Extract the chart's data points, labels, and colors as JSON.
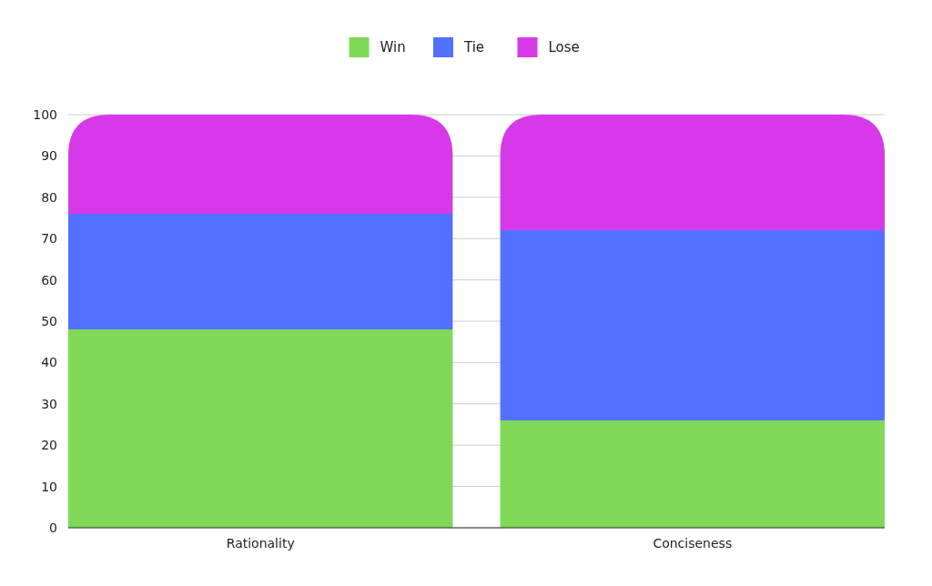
{
  "chart_data": {
    "type": "bar",
    "stacked": true,
    "categories": [
      "Rationality",
      "Conciseness"
    ],
    "series": [
      {
        "name": "Win",
        "color": "#7ed957",
        "values": [
          48,
          26
        ]
      },
      {
        "name": "Tie",
        "color": "#5271ff",
        "values": [
          28,
          46
        ]
      },
      {
        "name": "Lose",
        "color": "#d63ae8",
        "values": [
          24,
          28
        ]
      }
    ],
    "ylim": [
      0,
      100
    ],
    "yticks": [
      0,
      10,
      20,
      30,
      40,
      50,
      60,
      70,
      80,
      90,
      100
    ],
    "grid": "y",
    "legend": "top"
  }
}
